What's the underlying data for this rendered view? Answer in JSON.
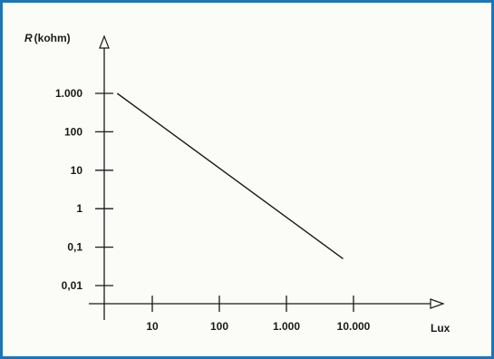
{
  "chart_data": {
    "type": "line",
    "title": "",
    "ylabel_symbol": "R",
    "ylabel_unit": "(kohm)",
    "xlabel": "Lux",
    "x_scale": "log",
    "y_scale": "log",
    "xlim": [
      1,
      30000
    ],
    "ylim": [
      0.004,
      2000
    ],
    "x_ticks": [
      {
        "value": 10,
        "label": "10"
      },
      {
        "value": 100,
        "label": "100"
      },
      {
        "value": 1000,
        "label": "1.000"
      },
      {
        "value": 10000,
        "label": "10.000"
      }
    ],
    "y_ticks": [
      {
        "value": 1000,
        "label": "1.000"
      },
      {
        "value": 100,
        "label": "100"
      },
      {
        "value": 10,
        "label": "10"
      },
      {
        "value": 1,
        "label": "1"
      },
      {
        "value": 0.1,
        "label": "0,1"
      },
      {
        "value": 0.01,
        "label": "0,01"
      }
    ],
    "series": [
      {
        "x": [
          3,
          7000
        ],
        "y": [
          1000,
          0.05
        ]
      }
    ],
    "grid": false,
    "colors": {
      "frame_border": "#1a76b8",
      "background": "#fbfbf8",
      "line": "#1a1a1a"
    }
  }
}
